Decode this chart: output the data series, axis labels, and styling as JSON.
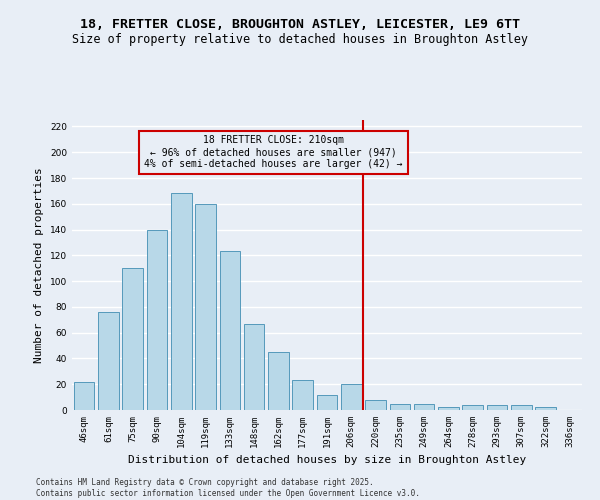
{
  "title_line1": "18, FRETTER CLOSE, BROUGHTON ASTLEY, LEICESTER, LE9 6TT",
  "title_line2": "Size of property relative to detached houses in Broughton Astley",
  "xlabel": "Distribution of detached houses by size in Broughton Astley",
  "ylabel": "Number of detached properties",
  "footer_line1": "Contains HM Land Registry data © Crown copyright and database right 2025.",
  "footer_line2": "Contains public sector information licensed under the Open Government Licence v3.0.",
  "bar_labels": [
    "46sqm",
    "61sqm",
    "75sqm",
    "90sqm",
    "104sqm",
    "119sqm",
    "133sqm",
    "148sqm",
    "162sqm",
    "177sqm",
    "191sqm",
    "206sqm",
    "220sqm",
    "235sqm",
    "249sqm",
    "264sqm",
    "278sqm",
    "293sqm",
    "307sqm",
    "322sqm",
    "336sqm"
  ],
  "bar_values": [
    22,
    76,
    110,
    140,
    168,
    160,
    123,
    67,
    45,
    23,
    12,
    20,
    8,
    5,
    5,
    2,
    4,
    4,
    4,
    2,
    0
  ],
  "bar_color": "#b8d8e8",
  "bar_edge_color": "#5599bb",
  "vline_x": 11.5,
  "vline_color": "#cc0000",
  "annotation_title": "18 FRETTER CLOSE: 210sqm",
  "annotation_line1": "← 96% of detached houses are smaller (947)",
  "annotation_line2": "4% of semi-detached houses are larger (42) →",
  "annotation_box_color": "#cc0000",
  "ylim": [
    0,
    225
  ],
  "yticks": [
    0,
    20,
    40,
    60,
    80,
    100,
    120,
    140,
    160,
    180,
    200,
    220
  ],
  "background_color": "#e8eef6",
  "grid_color": "#ffffff",
  "title_fontsize": 9.5,
  "subtitle_fontsize": 8.5,
  "ylabel_fontsize": 8,
  "xlabel_fontsize": 8,
  "tick_fontsize": 6.5,
  "annotation_fontsize": 7,
  "footer_fontsize": 5.5
}
